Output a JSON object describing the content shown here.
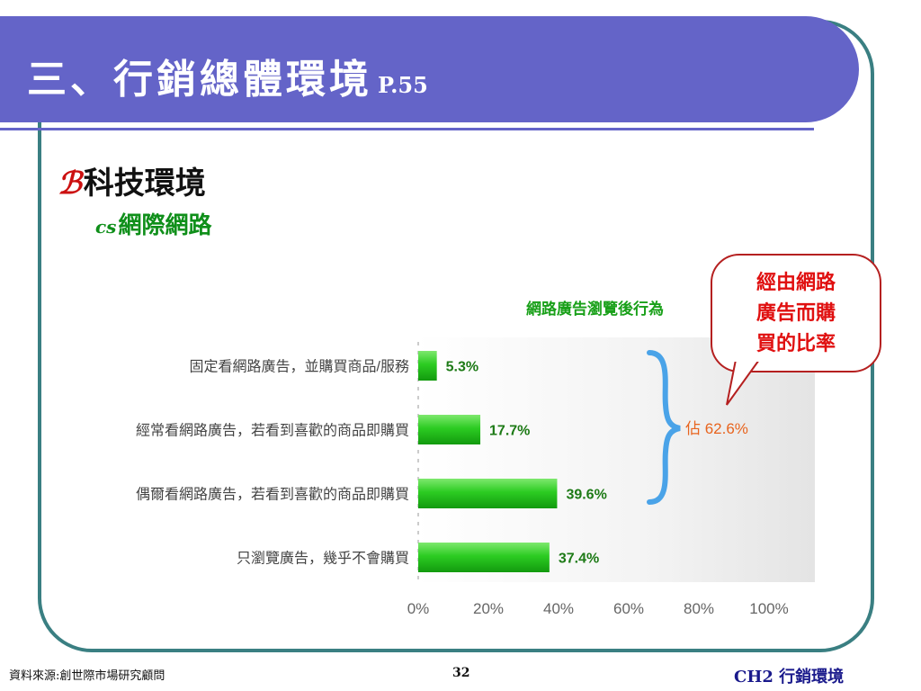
{
  "slide": {
    "title": "三、行銷總體環境",
    "title_page_ref": "P.55",
    "bullet_mark": "ℬ",
    "bullet1": "科技環境",
    "sub_bullet_mark": "cs",
    "bullet2": "網際網路"
  },
  "callout": {
    "line1": "經由網路",
    "line2": "廣告而購",
    "line3": "買的比率"
  },
  "chart_data": {
    "type": "bar",
    "orientation": "horizontal",
    "title": "網路廣告瀏覽後行為",
    "categories": [
      "固定看網路廣告，並購買商品/服務",
      "經常看網路廣告，若看到喜歡的商品即購買",
      "偶爾看網路廣告，若看到喜歡的商品即購買",
      "只瀏覽廣告，幾乎不會購買"
    ],
    "values": [
      5.3,
      17.7,
      39.6,
      37.4
    ],
    "value_labels": [
      "5.3%",
      "17.7%",
      "39.6%",
      "37.4%"
    ],
    "xlim": [
      0,
      100
    ],
    "x_ticks": [
      "0%",
      "20%",
      "40%",
      "60%",
      "80%",
      "100%"
    ],
    "annotation": "佔 62.6%",
    "bar_color": "#22c41a",
    "grid": false
  },
  "colors": {
    "title_band": "#6464c8",
    "frame": "#3a7f82",
    "chart_title": "#19a019",
    "annotation": "#e8641e",
    "brace": "#4aa3e8"
  },
  "footer": {
    "source": "資料來源:創世際市場研究顧問",
    "page_number": "32",
    "chapter": "CH2  行銷環境"
  }
}
